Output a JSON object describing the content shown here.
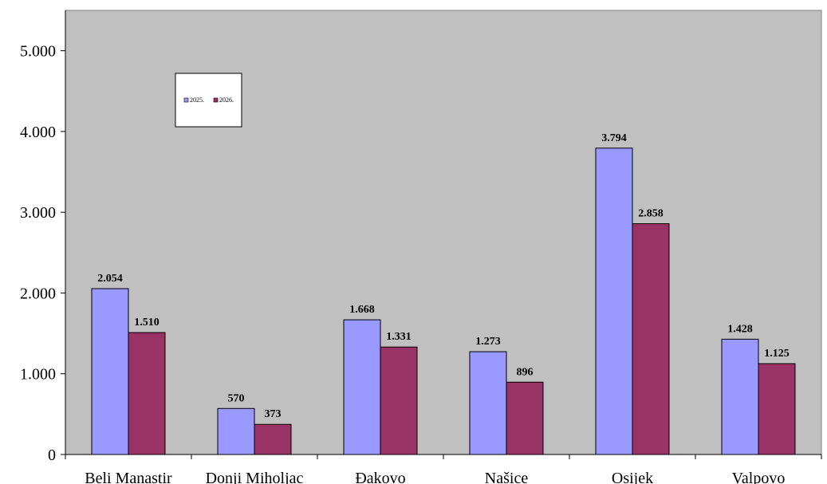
{
  "chart_data": {
    "type": "bar",
    "categories": [
      "Beli Manastir",
      "Donji Miholjac",
      "Đakovo",
      "Našice",
      "Osijek",
      "Valpovo"
    ],
    "series": [
      {
        "name": "2025.",
        "color": "#9999ff",
        "values": [
          2054,
          570,
          1668,
          1273,
          3794,
          1428
        ],
        "labels": [
          "2.054",
          "570",
          "1.668",
          "1.273",
          "3.794",
          "1.428"
        ]
      },
      {
        "name": "2026.",
        "color": "#993366",
        "values": [
          1510,
          373,
          1331,
          896,
          2858,
          1125
        ],
        "labels": [
          "1.510",
          "373",
          "1.331",
          "896",
          "2.858",
          "1.125"
        ]
      }
    ],
    "yticks": [
      0,
      1000,
      2000,
      3000,
      4000,
      5000
    ],
    "ytick_labels": [
      "0",
      "1.000",
      "2.000",
      "3.000",
      "4.000",
      "5.000"
    ],
    "ylim": [
      0,
      5500
    ],
    "plot_background": "#c0c0c0",
    "grid": false,
    "legend_position": "top-left"
  }
}
